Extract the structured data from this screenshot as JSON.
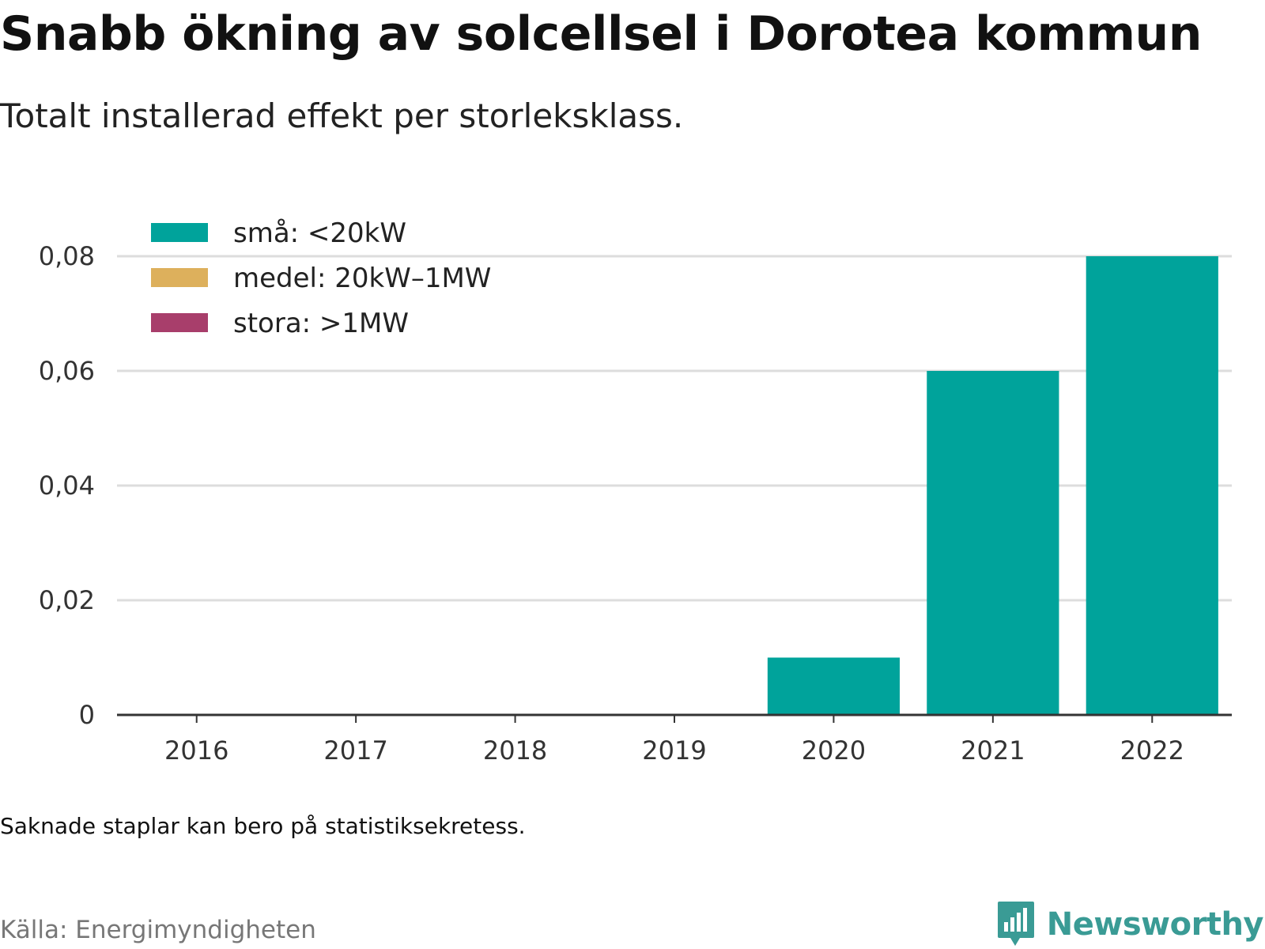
{
  "header": {
    "title": "Snabb ökning av solcellsel i Dorotea kommun",
    "subtitle": "Totalt installerad effekt per storleksklass."
  },
  "footer": {
    "note": "Saknade staplar kan bero på statistiksekretess.",
    "source": "Källa: Energimyndigheten",
    "brand": "Newsworthy",
    "brand_icon": "bar-chart-speech-bubble-icon",
    "brand_color": "#3a9b95"
  },
  "chart_data": {
    "type": "bar",
    "stacked": true,
    "title": "Snabb ökning av solcellsel i Dorotea kommun",
    "subtitle": "Totalt installerad effekt per storleksklass.",
    "xlabel": "",
    "ylabel": "",
    "categories": [
      "2016",
      "2017",
      "2018",
      "2019",
      "2020",
      "2021",
      "2022"
    ],
    "series": [
      {
        "name": "små: <20kW",
        "color": "#00a39b",
        "values": [
          0,
          0,
          0,
          0,
          0.01,
          0.06,
          0.08
        ]
      },
      {
        "name": "medel: 20kW–1MW",
        "color": "#ddb05c",
        "values": [
          0,
          0,
          0,
          0,
          0,
          0,
          0
        ]
      },
      {
        "name": "stora: >1MW",
        "color": "#a83e6b",
        "values": [
          0,
          0,
          0,
          0,
          0,
          0,
          0
        ]
      }
    ],
    "ylim": [
      0,
      0.08
    ],
    "yticks": [
      0,
      0.02,
      0.04,
      0.06,
      0.08
    ],
    "ytick_labels": [
      "0",
      "0,02",
      "0,04",
      "0,06",
      "0,08"
    ],
    "grid": true,
    "legend_position": "top-left"
  }
}
